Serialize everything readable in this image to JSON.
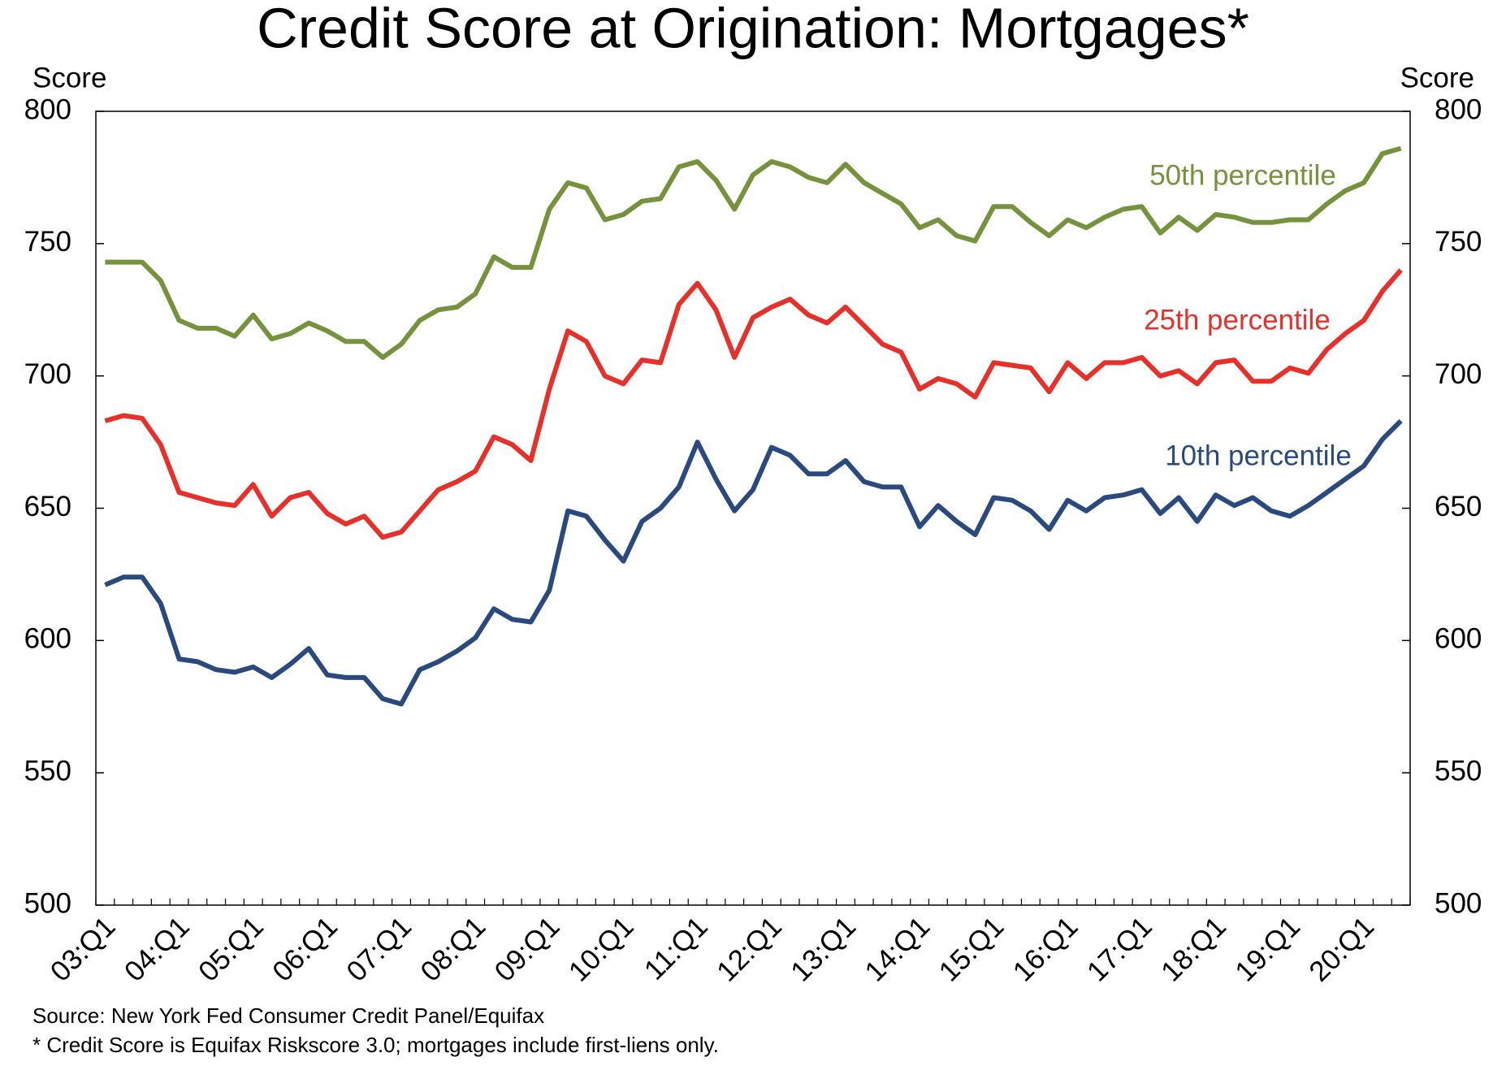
{
  "chart_data": {
    "type": "line",
    "title": "Credit Score at Origination: Mortgages*",
    "y_label": "Score",
    "y2_label": "Score",
    "source": "Source: New York Fed Consumer Credit Panel/Equifax",
    "note": "* Credit Score is Equifax Riskscore 3.0; mortgages include first-liens only.",
    "categories": [
      "03:Q1",
      null,
      null,
      null,
      "04:Q1",
      null,
      null,
      null,
      "05:Q1",
      null,
      null,
      null,
      "06:Q1",
      null,
      null,
      null,
      "07:Q1",
      null,
      null,
      null,
      "08:Q1",
      null,
      null,
      null,
      "09:Q1",
      null,
      null,
      null,
      "10:Q1",
      null,
      null,
      null,
      "11:Q1",
      null,
      null,
      null,
      "12:Q1",
      null,
      null,
      null,
      "13:Q1",
      null,
      null,
      null,
      "14:Q1",
      null,
      null,
      null,
      "15:Q1",
      null,
      null,
      null,
      "16:Q1",
      null,
      null,
      null,
      "17:Q1",
      null,
      null,
      null,
      "18:Q1",
      null,
      null,
      null,
      "19:Q1",
      null,
      null,
      null,
      "20:Q1",
      null,
      null
    ],
    "series": [
      {
        "name": "50th percentile",
        "color": "#76923c",
        "values": [
          743,
          743,
          743,
          736,
          721,
          718,
          718,
          715,
          723,
          714,
          716,
          720,
          717,
          713,
          713,
          707,
          712,
          721,
          725,
          726,
          731,
          745,
          741,
          741,
          763,
          773,
          771,
          759,
          761,
          766,
          767,
          779,
          781,
          774,
          763,
          776,
          781,
          779,
          775,
          773,
          780,
          773,
          769,
          765,
          756,
          759,
          753,
          751,
          764,
          764,
          758,
          753,
          759,
          756,
          760,
          763,
          764,
          754,
          760,
          755,
          761,
          760,
          758,
          758,
          759,
          759,
          765,
          770,
          773,
          784,
          786
        ]
      },
      {
        "name": "25th percentile",
        "color": "#e8302a",
        "values": [
          683,
          685,
          684,
          674,
          656,
          654,
          652,
          651,
          659,
          647,
          654,
          656,
          648,
          644,
          647,
          639,
          641,
          649,
          657,
          660,
          664,
          677,
          674,
          668,
          695,
          717,
          713,
          700,
          697,
          706,
          705,
          727,
          735,
          725,
          707,
          722,
          726,
          729,
          723,
          720,
          726,
          719,
          712,
          709,
          695,
          699,
          697,
          692,
          705,
          704,
          703,
          694,
          705,
          699,
          705,
          705,
          707,
          700,
          702,
          697,
          705,
          706,
          698,
          698,
          703,
          701,
          710,
          716,
          721,
          732,
          740
        ]
      },
      {
        "name": "10th percentile",
        "color": "#2a4a7f",
        "values": [
          621,
          624,
          624,
          614,
          593,
          592,
          589,
          588,
          590,
          586,
          591,
          597,
          587,
          586,
          586,
          578,
          576,
          589,
          592,
          596,
          601,
          612,
          608,
          607,
          619,
          649,
          647,
          638,
          630,
          645,
          650,
          658,
          675,
          661,
          649,
          657,
          673,
          670,
          663,
          663,
          668,
          660,
          658,
          658,
          643,
          651,
          645,
          640,
          654,
          653,
          649,
          642,
          653,
          649,
          654,
          655,
          657,
          648,
          654,
          645,
          655,
          651,
          654,
          649,
          647,
          651,
          656,
          661,
          666,
          676,
          683
        ]
      }
    ],
    "ylim": [
      500,
      800
    ],
    "yticks": [
      500,
      550,
      600,
      650,
      700,
      750,
      800
    ],
    "y2lim": [
      500,
      800
    ],
    "y2ticks": [
      500,
      550,
      600,
      650,
      700,
      750,
      800
    ],
    "grid": false
  }
}
